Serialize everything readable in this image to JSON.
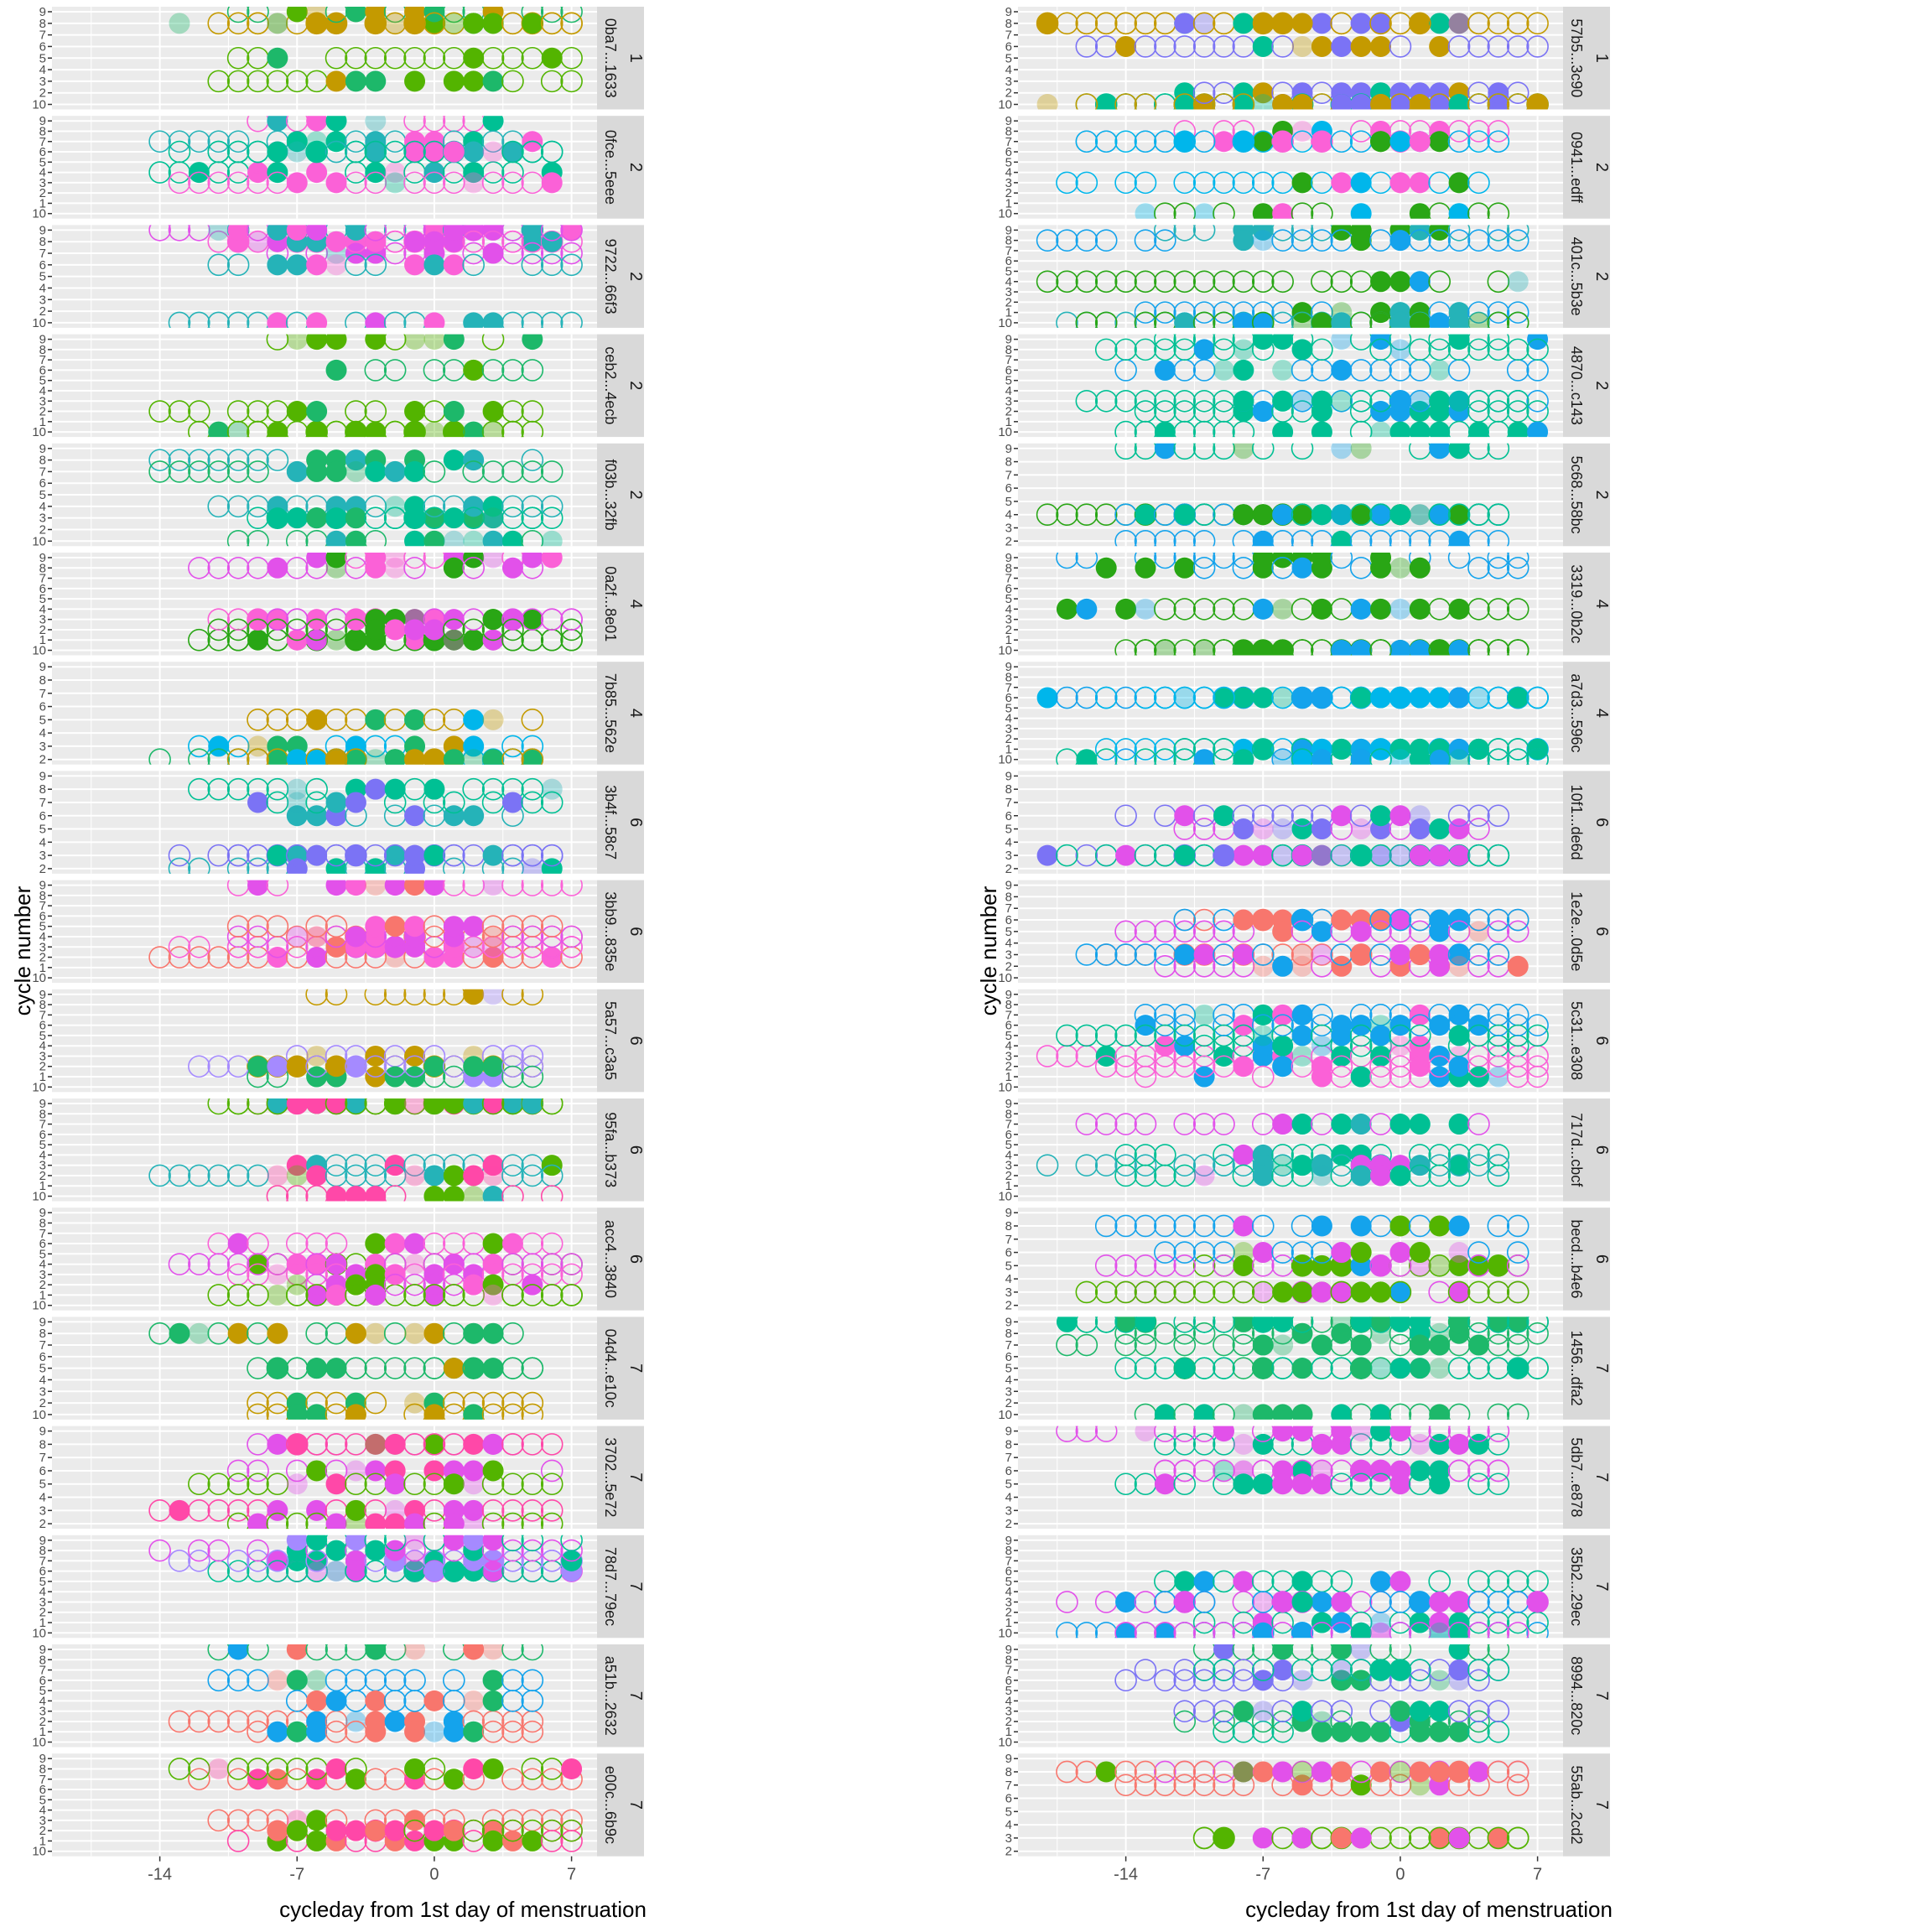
{
  "chart_data": [
    {
      "type": "scatter",
      "xlabel": "cycleday from 1st day of menstruation",
      "ylabel": "cycle number",
      "x_ticks": [
        -14,
        -7,
        0,
        7
      ],
      "xlim": [
        -19.5,
        8.3
      ],
      "panels": [
        {
          "id": "0ba7...1633",
          "group": "1",
          "y_ticks": [
            "9",
            "8",
            "7",
            "6",
            "5",
            "4",
            "3",
            "2",
            "10"
          ]
        },
        {
          "id": "0fce...5eee",
          "group": "2",
          "y_ticks": [
            "9",
            "8",
            "7",
            "6",
            "5",
            "4",
            "3",
            "2",
            "1",
            "10"
          ]
        },
        {
          "id": "9722...66f3",
          "group": "2",
          "y_ticks": [
            "9",
            "8",
            "7",
            "6",
            "5",
            "4",
            "3",
            "2",
            "10"
          ]
        },
        {
          "id": "ceb2...4ecb",
          "group": "2",
          "y_ticks": [
            "9",
            "8",
            "7",
            "6",
            "5",
            "4",
            "3",
            "2",
            "1",
            "10"
          ]
        },
        {
          "id": "f03b...32fb",
          "group": "2",
          "y_ticks": [
            "9",
            "8",
            "7",
            "6",
            "5",
            "4",
            "3",
            "2",
            "10"
          ]
        },
        {
          "id": "0a2f...8e01",
          "group": "4",
          "y_ticks": [
            "9",
            "8",
            "7",
            "6",
            "5",
            "4",
            "3",
            "2",
            "1",
            "10"
          ]
        },
        {
          "id": "7b85...562e",
          "group": "4",
          "y_ticks": [
            "9",
            "8",
            "7",
            "6",
            "5",
            "4",
            "3",
            "2"
          ]
        },
        {
          "id": "3b4f...58c7",
          "group": "6",
          "y_ticks": [
            "9",
            "8",
            "7",
            "6",
            "5",
            "4",
            "3",
            "2"
          ]
        },
        {
          "id": "3bb9...835e",
          "group": "6",
          "y_ticks": [
            "9",
            "8",
            "7",
            "6",
            "5",
            "4",
            "3",
            "2",
            "1",
            "10"
          ]
        },
        {
          "id": "5a57...c3a5",
          "group": "6",
          "y_ticks": [
            "9",
            "8",
            "7",
            "6",
            "5",
            "4",
            "3",
            "2",
            "1",
            "10"
          ]
        },
        {
          "id": "95fa...b373",
          "group": "6",
          "y_ticks": [
            "9",
            "8",
            "7",
            "6",
            "5",
            "4",
            "3",
            "2",
            "1",
            "10"
          ]
        },
        {
          "id": "acc4...3840",
          "group": "6",
          "y_ticks": [
            "9",
            "8",
            "7",
            "6",
            "5",
            "4",
            "3",
            "2",
            "1",
            "10"
          ]
        },
        {
          "id": "04d4...e10c",
          "group": "7",
          "y_ticks": [
            "9",
            "8",
            "7",
            "6",
            "5",
            "4",
            "3",
            "2",
            "10"
          ]
        },
        {
          "id": "3702...5e72",
          "group": "7",
          "y_ticks": [
            "9",
            "8",
            "7",
            "6",
            "5",
            "4",
            "3",
            "2"
          ]
        },
        {
          "id": "78d7...79ec",
          "group": "7",
          "y_ticks": [
            "9",
            "8",
            "7",
            "6",
            "5",
            "4",
            "3",
            "2",
            "1",
            "10"
          ]
        },
        {
          "id": "a51b...2632",
          "group": "7",
          "y_ticks": [
            "9",
            "8",
            "7",
            "6",
            "5",
            "4",
            "3",
            "2",
            "1",
            "10"
          ]
        },
        {
          "id": "e00c...6b9c",
          "group": "7",
          "y_ticks": [
            "9",
            "8",
            "7",
            "6",
            "5",
            "4",
            "3",
            "2",
            "1",
            "10"
          ]
        }
      ]
    },
    {
      "type": "scatter",
      "xlabel": "cycleday from 1st day of menstruation",
      "ylabel": "cycle number",
      "x_ticks": [
        -14,
        -7,
        0,
        7
      ],
      "xlim": [
        -19.5,
        8.3
      ],
      "panels": [
        {
          "id": "57b5...3c90",
          "group": "1",
          "y_ticks": [
            "9",
            "8",
            "7",
            "6",
            "5",
            "4",
            "3",
            "2",
            "10"
          ]
        },
        {
          "id": "0941...edff",
          "group": "2",
          "y_ticks": [
            "9",
            "8",
            "7",
            "6",
            "5",
            "4",
            "3",
            "2",
            "1",
            "10"
          ]
        },
        {
          "id": "401c...5b3e",
          "group": "2",
          "y_ticks": [
            "9",
            "8",
            "7",
            "6",
            "5",
            "4",
            "3",
            "2",
            "1",
            "10"
          ]
        },
        {
          "id": "4870...c143",
          "group": "2",
          "y_ticks": [
            "9",
            "8",
            "7",
            "6",
            "5",
            "4",
            "3",
            "2",
            "1",
            "10"
          ]
        },
        {
          "id": "5c68...58bc",
          "group": "2",
          "y_ticks": [
            "9",
            "8",
            "7",
            "6",
            "5",
            "4",
            "3",
            "2"
          ]
        },
        {
          "id": "3319...0b2c",
          "group": "4",
          "y_ticks": [
            "9",
            "8",
            "7",
            "6",
            "5",
            "4",
            "3",
            "2",
            "1",
            "10"
          ]
        },
        {
          "id": "a7d3...596c",
          "group": "4",
          "y_ticks": [
            "9",
            "8",
            "7",
            "6",
            "5",
            "4",
            "3",
            "2",
            "1",
            "10"
          ]
        },
        {
          "id": "10f1...de6d",
          "group": "6",
          "y_ticks": [
            "9",
            "8",
            "7",
            "6",
            "5",
            "4",
            "3",
            "2"
          ]
        },
        {
          "id": "1e2e...0d5e",
          "group": "6",
          "y_ticks": [
            "9",
            "8",
            "7",
            "6",
            "5",
            "4",
            "3",
            "2",
            "10"
          ]
        },
        {
          "id": "5c31...e308",
          "group": "6",
          "y_ticks": [
            "9",
            "8",
            "7",
            "6",
            "5",
            "4",
            "3",
            "2",
            "1",
            "10"
          ]
        },
        {
          "id": "717d...cbcf",
          "group": "6",
          "y_ticks": [
            "9",
            "8",
            "7",
            "6",
            "5",
            "4",
            "3",
            "2",
            "1",
            "10"
          ]
        },
        {
          "id": "becd...b4e6",
          "group": "6",
          "y_ticks": [
            "9",
            "8",
            "7",
            "6",
            "5",
            "4",
            "3",
            "2"
          ]
        },
        {
          "id": "1456...dfa2",
          "group": "7",
          "y_ticks": [
            "9",
            "8",
            "7",
            "6",
            "5",
            "4",
            "3",
            "2",
            "10"
          ]
        },
        {
          "id": "5db7...e878",
          "group": "7",
          "y_ticks": [
            "9",
            "8",
            "7",
            "6",
            "5",
            "4",
            "3",
            "2"
          ]
        },
        {
          "id": "35b2...29ec",
          "group": "7",
          "y_ticks": [
            "9",
            "8",
            "7",
            "6",
            "5",
            "4",
            "3",
            "2",
            "1",
            "10"
          ]
        },
        {
          "id": "8994...820c",
          "group": "7",
          "y_ticks": [
            "9",
            "8",
            "7",
            "6",
            "5",
            "4",
            "3",
            "2",
            "1",
            "10"
          ]
        },
        {
          "id": "55ab...2cd2",
          "group": "7",
          "y_ticks": [
            "9",
            "8",
            "7",
            "6",
            "5",
            "4",
            "3",
            "2"
          ]
        }
      ]
    }
  ],
  "colors": {
    "panel_background": "#EBEBEB",
    "grid": "#FFFFFF",
    "strip_background": "#D9D9D9",
    "axis_text": "#4D4D4D",
    "title_text": "#000000",
    "marker_palette": [
      "#F8766D",
      "#C49A00",
      "#53B400",
      "#00C094",
      "#00B6EB",
      "#A58AFF",
      "#FB61D7",
      "#1DB86A",
      "#14A3EC",
      "#7B73F5",
      "#FF48A8",
      "#25B3B8",
      "#E251EA",
      "#29A615"
    ]
  }
}
